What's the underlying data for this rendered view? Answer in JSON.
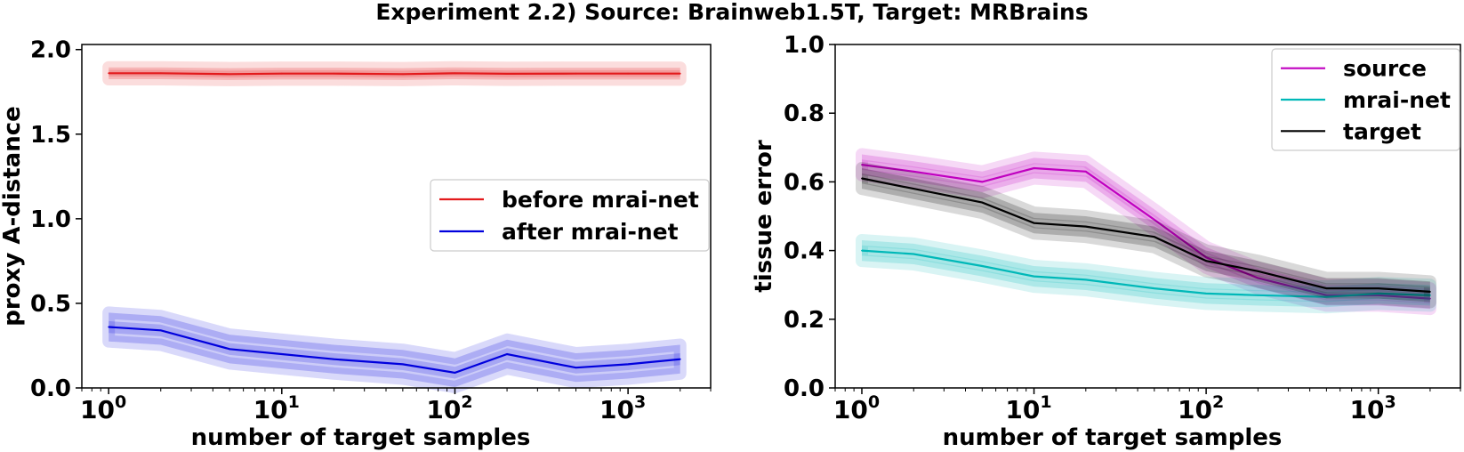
{
  "figure_title": "Experiment 2.2) Source: Brainweb1.5T, Target: MRBrains",
  "chart_data": [
    {
      "type": "line",
      "title": "",
      "xlabel": "number of target samples",
      "ylabel": "proxy A-distance",
      "xscale": "log",
      "xlim": [
        0.7,
        3000
      ],
      "ylim": [
        0,
        2.03
      ],
      "xticks": [
        {
          "value": 1,
          "base": "10",
          "exp": "0"
        },
        {
          "value": 10,
          "base": "10",
          "exp": "1"
        },
        {
          "value": 100,
          "base": "10",
          "exp": "2"
        },
        {
          "value": 1000,
          "base": "10",
          "exp": "3"
        }
      ],
      "yticks": [
        {
          "value": 0.0,
          "label": "0.0"
        },
        {
          "value": 0.5,
          "label": "0.5"
        },
        {
          "value": 1.0,
          "label": "1.0"
        },
        {
          "value": 1.5,
          "label": "1.5"
        },
        {
          "value": 2.0,
          "label": "2.0"
        }
      ],
      "grid": false,
      "legend_position": "center-right",
      "x": [
        1,
        2,
        5,
        10,
        20,
        50,
        100,
        200,
        500,
        1000,
        2000
      ],
      "series": [
        {
          "name": "before mrai-net",
          "color": "#e31a1c",
          "values": [
            1.86,
            1.86,
            1.855,
            1.858,
            1.858,
            1.855,
            1.86,
            1.857,
            1.858,
            1.858,
            1.858
          ],
          "band_inner": 0.02,
          "band_outer": 0.035
        },
        {
          "name": "after mrai-net",
          "color": "#0000dd",
          "values": [
            0.36,
            0.34,
            0.23,
            0.2,
            0.17,
            0.14,
            0.09,
            0.2,
            0.12,
            0.14,
            0.17
          ],
          "band_inner": 0.035,
          "band_outer": 0.085
        }
      ]
    },
    {
      "type": "line",
      "title": "",
      "xlabel": "number of target samples",
      "ylabel": "tissue error",
      "xscale": "log",
      "xlim": [
        0.7,
        3000
      ],
      "ylim": [
        0,
        1.0
      ],
      "xticks": [
        {
          "value": 1,
          "base": "10",
          "exp": "0"
        },
        {
          "value": 10,
          "base": "10",
          "exp": "1"
        },
        {
          "value": 100,
          "base": "10",
          "exp": "2"
        },
        {
          "value": 1000,
          "base": "10",
          "exp": "3"
        }
      ],
      "yticks": [
        {
          "value": 0.0,
          "label": "0.0"
        },
        {
          "value": 0.2,
          "label": "0.2"
        },
        {
          "value": 0.4,
          "label": "0.4"
        },
        {
          "value": 0.6,
          "label": "0.6"
        },
        {
          "value": 0.8,
          "label": "0.8"
        },
        {
          "value": 1.0,
          "label": "1.0"
        }
      ],
      "grid": false,
      "legend_position": "top-right",
      "x": [
        1,
        2,
        5,
        10,
        20,
        50,
        100,
        200,
        500,
        1000,
        2000
      ],
      "series": [
        {
          "name": "source",
          "color": "#c000c0",
          "values": [
            0.65,
            0.63,
            0.6,
            0.64,
            0.63,
            0.49,
            0.38,
            0.32,
            0.27,
            0.27,
            0.26
          ],
          "band_inner": 0.015,
          "band_outer": 0.03
        },
        {
          "name": "mrai-net",
          "color": "#00b8b8",
          "values": [
            0.4,
            0.39,
            0.355,
            0.325,
            0.315,
            0.29,
            0.275,
            0.27,
            0.265,
            0.275,
            0.27
          ],
          "band_inner": 0.015,
          "band_outer": 0.03
        },
        {
          "name": "target",
          "color": "#000000",
          "values": [
            0.61,
            0.58,
            0.54,
            0.48,
            0.47,
            0.44,
            0.37,
            0.34,
            0.29,
            0.29,
            0.28
          ],
          "band_inner": 0.015,
          "band_outer": 0.03
        }
      ]
    }
  ]
}
